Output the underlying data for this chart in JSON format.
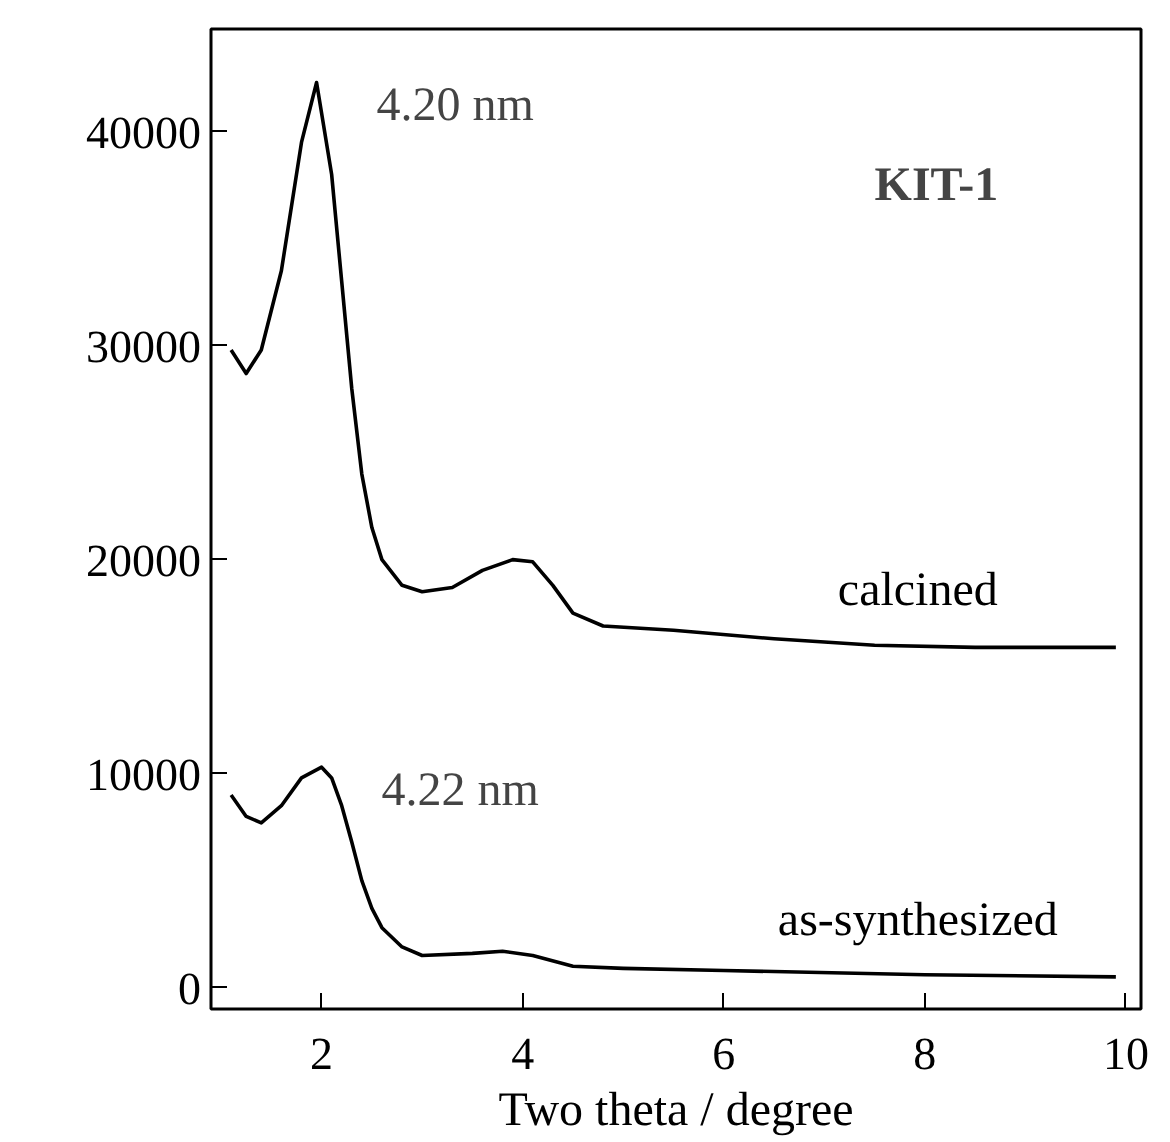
{
  "chart_data": {
    "type": "line",
    "title": "KIT-1",
    "xlabel": "Two theta / degree",
    "xlim": [
      0.9,
      10.15
    ],
    "ylim": [
      -1000,
      44800
    ],
    "xticks": [
      2,
      4,
      6,
      8,
      10
    ],
    "yticks": [
      0,
      10000,
      20000,
      30000,
      40000
    ],
    "grid": false,
    "marker": "none",
    "line_style": "solid",
    "series": [
      {
        "name": "calcined",
        "color": "#000000",
        "x": [
          1.1,
          1.25,
          1.4,
          1.6,
          1.8,
          1.95,
          2.1,
          2.2,
          2.3,
          2.4,
          2.5,
          2.6,
          2.8,
          3.0,
          3.3,
          3.6,
          3.9,
          4.1,
          4.3,
          4.5,
          4.8,
          5.5,
          6.5,
          7.5,
          8.5,
          9.9
        ],
        "values": [
          29800,
          28700,
          29800,
          33500,
          39500,
          42300,
          38000,
          33000,
          28000,
          24000,
          21500,
          20000,
          18800,
          18500,
          18700,
          19500,
          20000,
          19900,
          18800,
          17500,
          16900,
          16700,
          16300,
          16000,
          15900,
          15900
        ]
      },
      {
        "name": "as-synthesized",
        "color": "#000000",
        "x": [
          1.1,
          1.25,
          1.4,
          1.6,
          1.8,
          2.0,
          2.1,
          2.2,
          2.3,
          2.4,
          2.5,
          2.6,
          2.8,
          3.0,
          3.5,
          3.8,
          4.1,
          4.5,
          5.0,
          6.0,
          8.0,
          9.9
        ],
        "values": [
          9000,
          8000,
          7700,
          8500,
          9800,
          10300,
          9800,
          8500,
          6800,
          5000,
          3700,
          2800,
          1900,
          1500,
          1600,
          1700,
          1500,
          1000,
          900,
          800,
          600,
          500
        ]
      }
    ],
    "annotations": [
      "4.20 nm",
      "4.22 nm"
    ]
  }
}
